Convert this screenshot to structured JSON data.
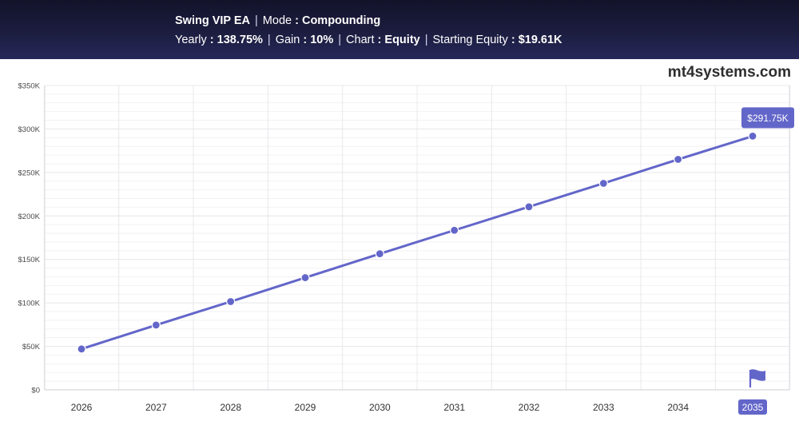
{
  "header": {
    "ea_name": "Swing VIP EA",
    "mode_label": "Mode",
    "mode_value": "Compounding",
    "yearly_label": "Yearly",
    "yearly_value": "138.75%",
    "gain_label": "Gain",
    "gain_value": "10%",
    "chart_label": "Chart",
    "chart_value": "Equity",
    "starting_equity_label": "Starting Equity",
    "starting_equity_value": "$19.61K"
  },
  "brand": "mt4systems.com",
  "colors": {
    "series": "#6366c9",
    "grid": "#e8e8ec",
    "accent": "#6366c9"
  },
  "chart_data": {
    "type": "line",
    "title": "",
    "xlabel": "",
    "ylabel": "",
    "categories": [
      "2026",
      "2027",
      "2028",
      "2029",
      "2030",
      "2031",
      "2032",
      "2033",
      "2034",
      "2035"
    ],
    "y_tick_values": [
      0,
      50000,
      100000,
      150000,
      200000,
      250000,
      300000,
      350000
    ],
    "y_tick_labels": [
      "$0",
      "$50K",
      "$100K",
      "$150K",
      "$200K",
      "$250K",
      "$300K",
      "$350K"
    ],
    "ylim": [
      0,
      350000
    ],
    "grid": true,
    "series": [
      {
        "name": "Equity",
        "values": [
          47000,
          74500,
          101500,
          129000,
          156500,
          183500,
          210500,
          237500,
          265000,
          291750
        ]
      }
    ],
    "annotations": {
      "last_value_label": "$291.75K",
      "highlighted_category": "2035",
      "flag_icon": "flag-icon"
    }
  }
}
